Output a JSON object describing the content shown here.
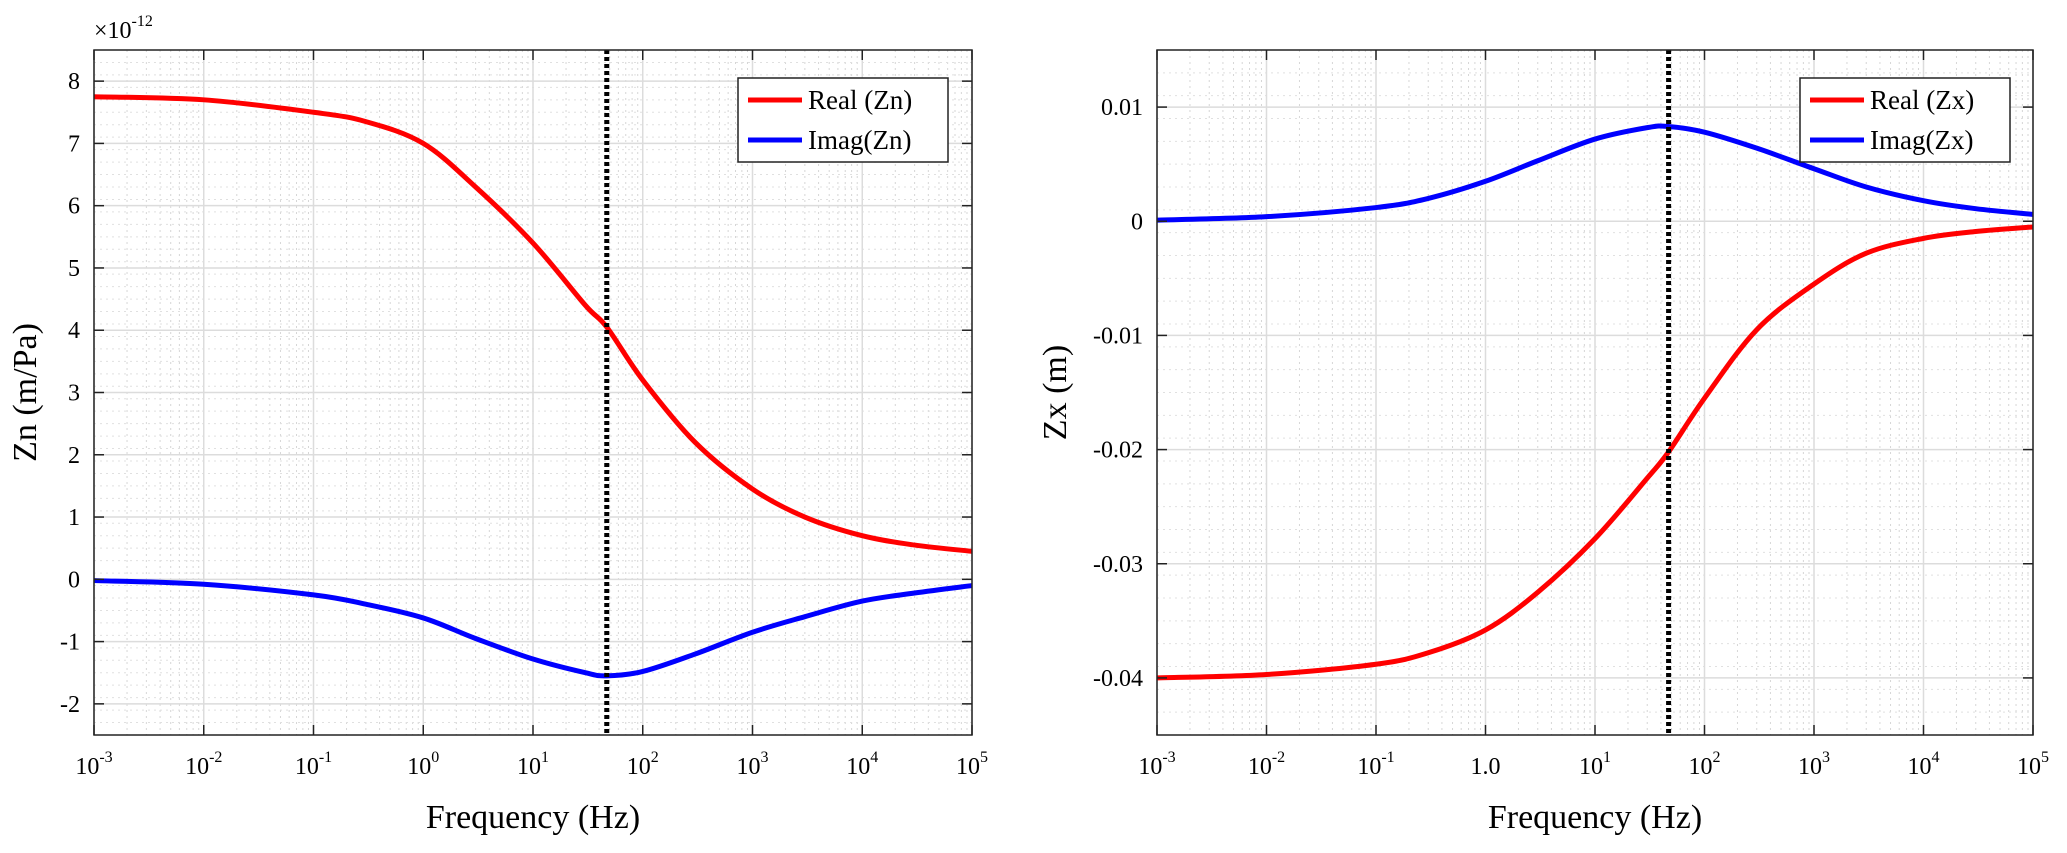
{
  "chart_data": [
    {
      "type": "line",
      "x_scale": "log",
      "xlim": [
        0.001,
        100000
      ],
      "ylim": [
        -2.5,
        8.5
      ],
      "y_multiplier_label": {
        "base": "×10",
        "exponent": "-12"
      },
      "xlabel": "Frequency (Hz)",
      "ylabel": "Zn (m/Pa)",
      "x_ticks": [
        {
          "base": "10",
          "exp": "-3",
          "value": 0.001
        },
        {
          "base": "10",
          "exp": "-2",
          "value": 0.01
        },
        {
          "base": "10",
          "exp": "-1",
          "value": 0.1
        },
        {
          "base": "10",
          "exp": "0",
          "value": 1
        },
        {
          "base": "10",
          "exp": "1",
          "value": 10
        },
        {
          "base": "10",
          "exp": "2",
          "value": 100
        },
        {
          "base": "10",
          "exp": "3",
          "value": 1000
        },
        {
          "base": "10",
          "exp": "4",
          "value": 10000
        },
        {
          "base": "10",
          "exp": "5",
          "value": 100000
        }
      ],
      "y_ticks": [
        {
          "label": "8",
          "value": 8
        },
        {
          "label": "7",
          "value": 7
        },
        {
          "label": "6",
          "value": 6
        },
        {
          "label": "5",
          "value": 5
        },
        {
          "label": "4",
          "value": 4
        },
        {
          "label": "3",
          "value": 3
        },
        {
          "label": "2",
          "value": 2
        },
        {
          "label": "1",
          "value": 1
        },
        {
          "label": "0",
          "value": 0
        },
        {
          "label": "-1",
          "value": -1
        },
        {
          "label": "-2",
          "value": -2
        }
      ],
      "grid": true,
      "minor_grid": true,
      "legend_position": "top-right",
      "vertical_marker_x": 47,
      "series": [
        {
          "name": "Real (Zn)",
          "color": "#ff0000",
          "x": [
            0.001,
            0.01,
            0.1,
            0.3,
            1,
            3,
            10,
            30,
            47,
            100,
            300,
            1000,
            3000,
            10000,
            30000,
            100000
          ],
          "y": [
            7.75,
            7.7,
            7.5,
            7.35,
            7.0,
            6.3,
            5.4,
            4.4,
            4.05,
            3.2,
            2.2,
            1.45,
            1.0,
            0.7,
            0.55,
            0.45
          ]
        },
        {
          "name": "Imag(Zn)",
          "color": "#0000ff",
          "x": [
            0.001,
            0.01,
            0.1,
            0.3,
            1,
            3,
            10,
            30,
            47,
            100,
            300,
            1000,
            3000,
            10000,
            30000,
            100000
          ],
          "y": [
            -0.02,
            -0.08,
            -0.25,
            -0.4,
            -0.62,
            -0.95,
            -1.28,
            -1.5,
            -1.55,
            -1.48,
            -1.2,
            -0.85,
            -0.6,
            -0.35,
            -0.22,
            -0.1
          ]
        }
      ]
    },
    {
      "type": "line",
      "x_scale": "log",
      "xlim": [
        0.001,
        100000
      ],
      "ylim": [
        -0.045,
        0.015
      ],
      "xlabel": "Frequency (Hz)",
      "ylabel": "Zx (m)",
      "x_ticks": [
        {
          "base": "10",
          "exp": "-3",
          "value": 0.001
        },
        {
          "base": "10",
          "exp": "-2",
          "value": 0.01
        },
        {
          "base": "10",
          "exp": "-1",
          "value": 0.1
        },
        {
          "base": "1.0",
          "exp": "",
          "value": 1
        },
        {
          "base": "10",
          "exp": "1",
          "value": 10
        },
        {
          "base": "10",
          "exp": "2",
          "value": 100
        },
        {
          "base": "10",
          "exp": "3",
          "value": 1000
        },
        {
          "base": "10",
          "exp": "4",
          "value": 10000
        },
        {
          "base": "10",
          "exp": "5",
          "value": 100000
        }
      ],
      "y_ticks": [
        {
          "label": "0.01",
          "value": 0.01
        },
        {
          "label": "0",
          "value": 0
        },
        {
          "label": "-0.01",
          "value": -0.01
        },
        {
          "label": "-0.02",
          "value": -0.02
        },
        {
          "label": "-0.03",
          "value": -0.03
        },
        {
          "label": "-0.04",
          "value": -0.04
        }
      ],
      "grid": true,
      "minor_grid": true,
      "legend_position": "top-right",
      "vertical_marker_x": 47,
      "series": [
        {
          "name": "Real (Zx)",
          "color": "#ff0000",
          "x": [
            0.001,
            0.01,
            0.1,
            0.3,
            1,
            3,
            10,
            30,
            47,
            100,
            300,
            1000,
            3000,
            10000,
            30000,
            100000
          ],
          "y": [
            -0.04,
            -0.0397,
            -0.0388,
            -0.0378,
            -0.0358,
            -0.0325,
            -0.0278,
            -0.0225,
            -0.0202,
            -0.0155,
            -0.0095,
            -0.0055,
            -0.0028,
            -0.0015,
            -0.0009,
            -0.0005
          ]
        },
        {
          "name": "Imag(Zx)",
          "color": "#0000ff",
          "x": [
            0.001,
            0.01,
            0.1,
            0.3,
            1,
            3,
            10,
            30,
            47,
            100,
            300,
            1000,
            3000,
            10000,
            30000,
            100000
          ],
          "y": [
            0.0001,
            0.0004,
            0.0012,
            0.002,
            0.0035,
            0.0053,
            0.0072,
            0.0082,
            0.0083,
            0.0078,
            0.0064,
            0.0046,
            0.003,
            0.0018,
            0.0011,
            0.0006
          ]
        }
      ]
    }
  ]
}
